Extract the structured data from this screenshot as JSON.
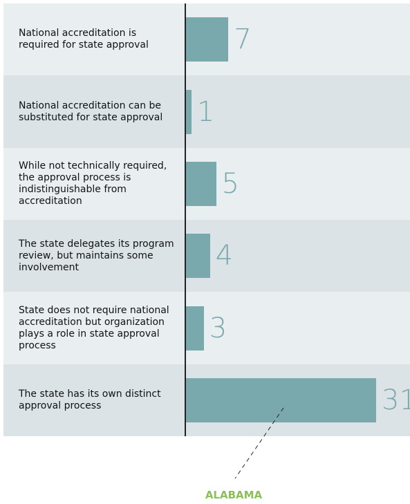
{
  "chart_data": {
    "type": "bar",
    "orientation": "horizontal",
    "categories": [
      "National accreditation is required for state approval",
      "National accreditation can be substituted for state approval",
      "While not technically required, the approval process is indistinguishable from accreditation",
      "The state delegates its program review, but maintains some involvement",
      "State does not require national accreditation but organization plays a role in state approval process",
      "The state has its own distinct approval process"
    ],
    "values": [
      7,
      1,
      5,
      4,
      3,
      31
    ],
    "color": "#7aa9ad",
    "annotation": "ALABAMA"
  }
}
